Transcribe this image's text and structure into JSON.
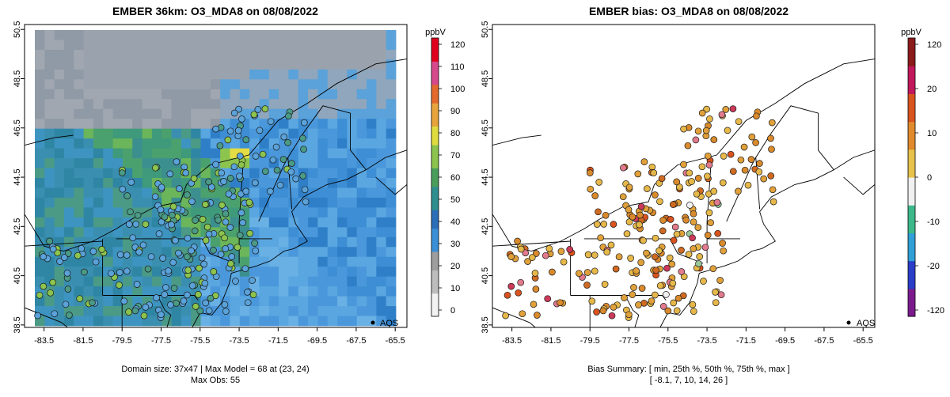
{
  "chart_data": [
    {
      "type": "heatmap",
      "title": "EMBER 36km: O3_MDA8 on 08/08/2022",
      "x_ticks": [
        "-83.5",
        "-81.5",
        "-79.5",
        "-77.5",
        "-75.5",
        "-73.5",
        "-71.5",
        "-69.5",
        "-67.5",
        "-65.5"
      ],
      "y_ticks": [
        "50.5",
        "48.5",
        "46.5",
        "44.5",
        "42.5",
        "40.5",
        "38.5"
      ],
      "xlim": [
        -84.5,
        -64.9
      ],
      "ylim": [
        38.4,
        50.7
      ],
      "colorbar": {
        "label": "ppbV",
        "ticks": [
          "120",
          "110",
          "100",
          "90",
          "80",
          "70",
          "60",
          "50",
          "40",
          "30",
          "20",
          "10",
          "0"
        ],
        "range": [
          0,
          120
        ],
        "colors": [
          "#f2f2f2",
          "#bdbdbd",
          "#9e9e9e",
          "#3b8fd6",
          "#2b6fb8",
          "#2f8f8f",
          "#4a9e5c",
          "#8cc44e",
          "#e0dc40",
          "#e8a43c",
          "#e36a2c",
          "#d64a8c",
          "#e0001e"
        ]
      },
      "legend": "AQS",
      "legend_position": "bottom-right",
      "footer_line1": "Domain size: 37x47 | Max Model = 68 at (23, 24)",
      "footer_line2": "Max Obs: 55"
    },
    {
      "type": "scatter",
      "title": "EMBER bias: O3_MDA8 on 08/08/2022",
      "x_ticks": [
        "-83.5",
        "-81.5",
        "-79.5",
        "-77.5",
        "-75.5",
        "-73.5",
        "-71.5",
        "-69.5",
        "-67.5",
        "-65.5"
      ],
      "y_ticks": [
        "50.5",
        "48.5",
        "46.5",
        "44.5",
        "42.5",
        "40.5",
        "38.5"
      ],
      "xlim": [
        -84.5,
        -64.9
      ],
      "ylim": [
        38.4,
        50.7
      ],
      "colorbar": {
        "label": "ppbV",
        "ticks": [
          "120",
          "20",
          "10",
          "0",
          "-10",
          "-20",
          "-120"
        ],
        "range": [
          -120,
          120
        ],
        "colors": [
          "#7a1a8c",
          "#2a3ec9",
          "#2fa0d6",
          "#3cb98a",
          "#f0f0f0",
          "#e6c24a",
          "#e08a2c",
          "#d9531e",
          "#c2185b",
          "#8b1a1a"
        ]
      },
      "legend": "AQS",
      "legend_position": "bottom-right",
      "footer_line1": "Bias Summary: [ min, 25th %, 50th %, 75th %, max ]",
      "footer_line2": "[ -8.1,   7,   10,   14,   26 ]"
    }
  ]
}
